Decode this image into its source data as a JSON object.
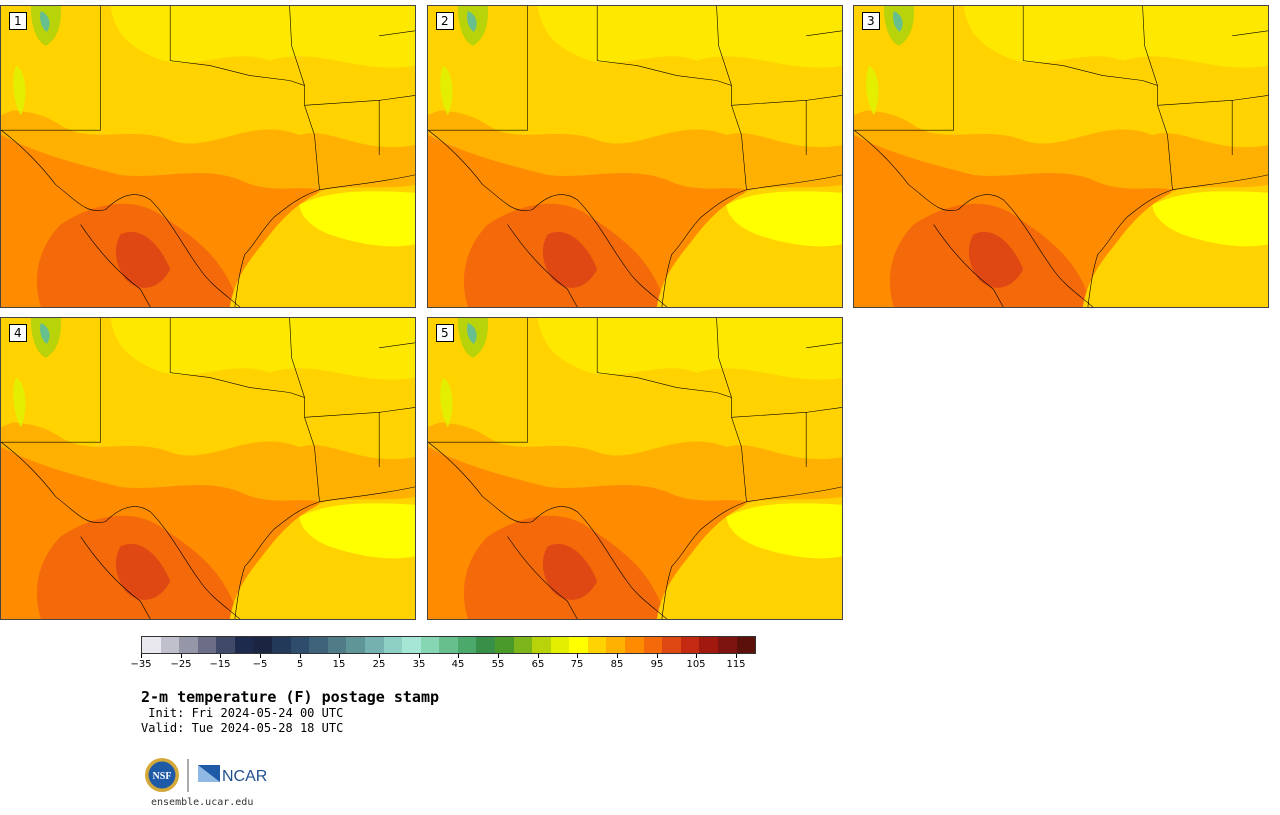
{
  "panels": [
    {
      "label": "1"
    },
    {
      "label": "2"
    },
    {
      "label": "3"
    },
    {
      "label": "4"
    },
    {
      "label": "5"
    }
  ],
  "colorbar": {
    "colors": [
      "#e8e8ee",
      "#bfc0cc",
      "#9597a8",
      "#6b6e86",
      "#414968",
      "#1d2a4d",
      "#1b2440",
      "#22395a",
      "#2e4c6b",
      "#3e6378",
      "#4f7c86",
      "#5f9596",
      "#75b1ae",
      "#8fd0c4",
      "#a5e6d5",
      "#86d5b3",
      "#68bf8e",
      "#4aa96b",
      "#389048",
      "#4a9a2a",
      "#7db51a",
      "#b8d30a",
      "#e3ee00",
      "#ffff00",
      "#ffd200",
      "#ffb000",
      "#ff8c00",
      "#f46a0a",
      "#df4812",
      "#c42a12",
      "#a0180e",
      "#7e1410",
      "#5c100c"
    ],
    "tick_labels": [
      "−35",
      "−25",
      "−15",
      "−5",
      "5",
      "15",
      "25",
      "35",
      "45",
      "55",
      "65",
      "75",
      "85",
      "95",
      "105",
      "115"
    ]
  },
  "title": "2-m temperature (F) postage stamp",
  "init_text": " Init: Fri 2024-05-24 00 UTC",
  "valid_text": "Valid: Tue 2024-05-28 18 UTC",
  "footer": {
    "nsf_logo_text": "NSF",
    "ncar_logo_text": "NCAR",
    "site": "ensemble.ucar.edu"
  }
}
